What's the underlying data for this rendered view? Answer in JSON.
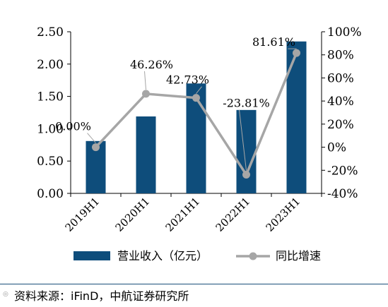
{
  "chart_data": {
    "type": "bar+line",
    "categories": [
      "2019H1",
      "2020H1",
      "2021H1",
      "2022H1",
      "2023H1"
    ],
    "series": [
      {
        "name": "营业收入（亿元）",
        "type": "bar",
        "axis": "left",
        "color": "#0e4d7b",
        "values": [
          0.81,
          1.19,
          1.7,
          1.29,
          2.35
        ]
      },
      {
        "name": "同比增速",
        "type": "line",
        "axis": "right",
        "color": "#a6a6a6",
        "values": [
          0.0,
          46.26,
          42.73,
          -23.81,
          81.61
        ],
        "labels": [
          "0.00%",
          "46.26%",
          "42.73%",
          "-23.81%",
          "81.61%"
        ]
      }
    ],
    "left_axis": {
      "min": 0,
      "max": 2.5,
      "ticks": [
        "0.00",
        "0.50",
        "1.00",
        "1.50",
        "2.00",
        "2.50"
      ]
    },
    "right_axis": {
      "min": -40,
      "max": 100,
      "ticks": [
        "-40%",
        "-20%",
        "0%",
        "20%",
        "40%",
        "60%",
        "80%",
        "100%"
      ]
    },
    "grid": false,
    "legend_position": "bottom"
  },
  "source_text": "资料来源：iFinD，中航证券研究所",
  "logo_text": "◎"
}
